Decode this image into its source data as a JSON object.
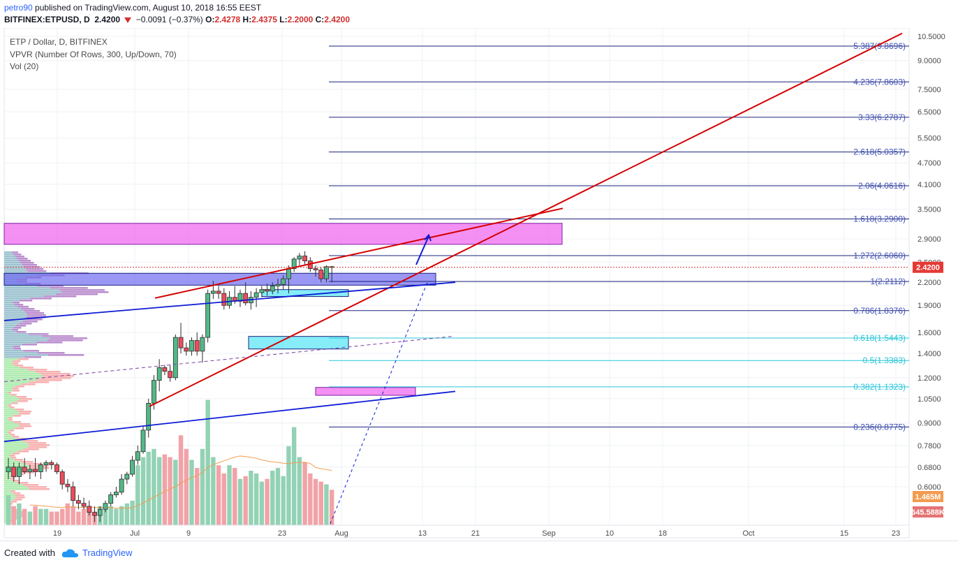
{
  "header": {
    "author": "petro90",
    "published": "published on TradingView.com, August 10, 2018 16:55 EEST",
    "symbol": "BITFINEX:ETPUSD, D",
    "last": "2.4200",
    "change": "−0.0091 (−0.37%)",
    "ohlc_o_label": "O:",
    "ohlc_o": "2.4278",
    "ohlc_h_label": "H:",
    "ohlc_h": "2.4375",
    "ohlc_l_label": "L:",
    "ohlc_l": "2.2000",
    "ohlc_c_label": "C:",
    "ohlc_c": "2.4200"
  },
  "legend": {
    "pair": "ETP / Dollar, D, BITFINEX",
    "vpvr": "VPVR (Number Of Rows, 300, Up/Down, 70)",
    "vol": "Vol (20)"
  },
  "price_badge": "2.4200",
  "vol_badge_1": "1.465M",
  "vol_badge_2": "645.588K",
  "footer": {
    "created": "Created with",
    "brand": "TradingView"
  },
  "chart_data": {
    "type": "candlestick",
    "price_scale": "log",
    "y_ticks": [
      "10.5000",
      "9.0000",
      "7.5000",
      "6.5000",
      "5.5000",
      "4.7000",
      "4.1000",
      "3.5000",
      "2.9000",
      "2.5000",
      "2.2000",
      "1.9000",
      "1.6000",
      "1.4000",
      "1.2000",
      "1.0500",
      "0.9000",
      "0.7800",
      "0.6800",
      "0.6000"
    ],
    "x_ticks": [
      "19",
      "Jul",
      "9",
      "23",
      "Aug",
      "13",
      "21",
      "Sep",
      "10",
      "18",
      "Oct",
      "15",
      "23"
    ],
    "fib_levels": [
      {
        "label": "0.236(0.8775)",
        "value": 0.8775,
        "color": "#1a237e"
      },
      {
        "label": "0.382(1.1323)",
        "value": 1.1323,
        "color": "#26c6da"
      },
      {
        "label": "0.5(1.3383)",
        "value": 1.3383,
        "color": "#26c6da"
      },
      {
        "label": "0.618(1.5443)",
        "value": 1.5443,
        "color": "#26c6da"
      },
      {
        "label": "0.786(1.8376)",
        "value": 1.8376,
        "color": "#1a237e"
      },
      {
        "label": "1(2.2112)",
        "value": 2.2112,
        "color": "#1a237e"
      },
      {
        "label": "1.272(2.6060)",
        "value": 2.606,
        "color": "#1a237e"
      },
      {
        "label": "1.618(3.2900)",
        "value": 3.29,
        "color": "#1a237e"
      },
      {
        "label": "2.06(4.0616)",
        "value": 4.0616,
        "color": "#1a237e"
      },
      {
        "label": "2.618(5.0357)",
        "value": 5.0357,
        "color": "#1a237e"
      },
      {
        "label": "3.33(6.2787)",
        "value": 6.2787,
        "color": "#1a237e"
      },
      {
        "label": "4.236(7.8603)",
        "value": 7.8603,
        "color": "#1a237e"
      },
      {
        "label": "5.387(9.8696)",
        "value": 9.8696,
        "color": "#1a237e"
      }
    ],
    "candles": [
      {
        "o": 0.66,
        "h": 0.72,
        "l": 0.63,
        "c": 0.68
      },
      {
        "o": 0.68,
        "h": 0.7,
        "l": 0.62,
        "c": 0.64
      },
      {
        "o": 0.64,
        "h": 0.7,
        "l": 0.61,
        "c": 0.68
      },
      {
        "o": 0.68,
        "h": 0.72,
        "l": 0.65,
        "c": 0.66
      },
      {
        "o": 0.66,
        "h": 0.69,
        "l": 0.63,
        "c": 0.67
      },
      {
        "o": 0.67,
        "h": 0.72,
        "l": 0.64,
        "c": 0.66
      },
      {
        "o": 0.66,
        "h": 0.7,
        "l": 0.63,
        "c": 0.69
      },
      {
        "o": 0.69,
        "h": 0.71,
        "l": 0.66,
        "c": 0.7
      },
      {
        "o": 0.7,
        "h": 0.71,
        "l": 0.67,
        "c": 0.69
      },
      {
        "o": 0.69,
        "h": 0.7,
        "l": 0.65,
        "c": 0.66
      },
      {
        "o": 0.66,
        "h": 0.67,
        "l": 0.59,
        "c": 0.61
      },
      {
        "o": 0.61,
        "h": 0.63,
        "l": 0.58,
        "c": 0.6
      },
      {
        "o": 0.6,
        "h": 0.62,
        "l": 0.53,
        "c": 0.55
      },
      {
        "o": 0.55,
        "h": 0.57,
        "l": 0.52,
        "c": 0.54
      },
      {
        "o": 0.54,
        "h": 0.56,
        "l": 0.52,
        "c": 0.53
      },
      {
        "o": 0.53,
        "h": 0.55,
        "l": 0.5,
        "c": 0.51
      },
      {
        "o": 0.51,
        "h": 0.53,
        "l": 0.48,
        "c": 0.5
      },
      {
        "o": 0.5,
        "h": 0.53,
        "l": 0.48,
        "c": 0.52
      },
      {
        "o": 0.52,
        "h": 0.55,
        "l": 0.51,
        "c": 0.54
      },
      {
        "o": 0.54,
        "h": 0.58,
        "l": 0.53,
        "c": 0.57
      },
      {
        "o": 0.57,
        "h": 0.6,
        "l": 0.56,
        "c": 0.58
      },
      {
        "o": 0.58,
        "h": 0.65,
        "l": 0.57,
        "c": 0.63
      },
      {
        "o": 0.63,
        "h": 0.66,
        "l": 0.61,
        "c": 0.65
      },
      {
        "o": 0.65,
        "h": 0.73,
        "l": 0.64,
        "c": 0.71
      },
      {
        "o": 0.71,
        "h": 0.78,
        "l": 0.69,
        "c": 0.75
      },
      {
        "o": 0.75,
        "h": 0.88,
        "l": 0.74,
        "c": 0.86
      },
      {
        "o": 0.86,
        "h": 1.05,
        "l": 0.82,
        "c": 1.02
      },
      {
        "o": 1.02,
        "h": 1.22,
        "l": 0.98,
        "c": 1.18
      },
      {
        "o": 1.18,
        "h": 1.35,
        "l": 1.1,
        "c": 1.28
      },
      {
        "o": 1.28,
        "h": 1.3,
        "l": 1.22,
        "c": 1.25
      },
      {
        "o": 1.25,
        "h": 1.3,
        "l": 1.17,
        "c": 1.2
      },
      {
        "o": 1.2,
        "h": 1.58,
        "l": 1.18,
        "c": 1.55
      },
      {
        "o": 1.55,
        "h": 1.7,
        "l": 1.4,
        "c": 1.45
      },
      {
        "o": 1.45,
        "h": 1.5,
        "l": 1.38,
        "c": 1.42
      },
      {
        "o": 1.42,
        "h": 1.55,
        "l": 1.38,
        "c": 1.52
      },
      {
        "o": 1.52,
        "h": 1.6,
        "l": 1.38,
        "c": 1.42
      },
      {
        "o": 1.42,
        "h": 1.58,
        "l": 1.32,
        "c": 1.55
      },
      {
        "o": 1.55,
        "h": 2.1,
        "l": 1.5,
        "c": 2.05
      },
      {
        "o": 2.05,
        "h": 2.22,
        "l": 1.98,
        "c": 2.08
      },
      {
        "o": 2.08,
        "h": 2.15,
        "l": 1.98,
        "c": 2.05
      },
      {
        "o": 2.05,
        "h": 2.12,
        "l": 1.85,
        "c": 1.9
      },
      {
        "o": 1.9,
        "h": 2.08,
        "l": 1.86,
        "c": 2.0
      },
      {
        "o": 2.0,
        "h": 2.15,
        "l": 1.92,
        "c": 1.95
      },
      {
        "o": 1.95,
        "h": 2.1,
        "l": 1.88,
        "c": 2.05
      },
      {
        "o": 2.05,
        "h": 2.2,
        "l": 1.9,
        "c": 1.93
      },
      {
        "o": 1.93,
        "h": 2.08,
        "l": 1.85,
        "c": 2.0
      },
      {
        "o": 2.0,
        "h": 2.12,
        "l": 1.88,
        "c": 2.06
      },
      {
        "o": 2.06,
        "h": 2.15,
        "l": 2.0,
        "c": 2.1
      },
      {
        "o": 2.1,
        "h": 2.18,
        "l": 2.02,
        "c": 2.08
      },
      {
        "o": 2.08,
        "h": 2.2,
        "l": 2.04,
        "c": 2.15
      },
      {
        "o": 2.15,
        "h": 2.25,
        "l": 2.05,
        "c": 2.17
      },
      {
        "o": 2.17,
        "h": 2.3,
        "l": 2.1,
        "c": 2.25
      },
      {
        "o": 2.25,
        "h": 2.45,
        "l": 2.05,
        "c": 2.4
      },
      {
        "o": 2.4,
        "h": 2.58,
        "l": 2.35,
        "c": 2.55
      },
      {
        "o": 2.55,
        "h": 2.65,
        "l": 2.45,
        "c": 2.6
      },
      {
        "o": 2.6,
        "h": 2.68,
        "l": 2.45,
        "c": 2.52
      },
      {
        "o": 2.52,
        "h": 2.58,
        "l": 2.35,
        "c": 2.4
      },
      {
        "o": 2.4,
        "h": 2.45,
        "l": 2.28,
        "c": 2.38
      },
      {
        "o": 2.38,
        "h": 2.42,
        "l": 2.2,
        "c": 2.25
      },
      {
        "o": 2.25,
        "h": 2.45,
        "l": 2.2,
        "c": 2.43
      },
      {
        "o": 2.43,
        "h": 2.44,
        "l": 2.2,
        "c": 2.42
      }
    ],
    "volume": [
      0.55,
      0.35,
      0.4,
      0.3,
      0.25,
      0.35,
      0.3,
      0.3,
      0.25,
      0.25,
      0.3,
      0.4,
      0.35,
      0.25,
      0.3,
      0.35,
      0.25,
      0.35,
      0.3,
      0.35,
      0.3,
      0.35,
      0.4,
      0.45,
      1.1,
      1.25,
      1.35,
      1.4,
      1.25,
      1.3,
      1.25,
      1.2,
      1.65,
      1.4,
      1.2,
      1.05,
      1.4,
      2.3,
      1.25,
      1.1,
      0.95,
      1.1,
      1.05,
      0.85,
      0.9,
      1.0,
      0.95,
      0.8,
      0.85,
      1.0,
      1.05,
      0.9,
      1.45,
      1.8,
      1.25,
      1.15,
      0.95,
      0.85,
      0.8,
      0.75,
      0.65
    ]
  }
}
